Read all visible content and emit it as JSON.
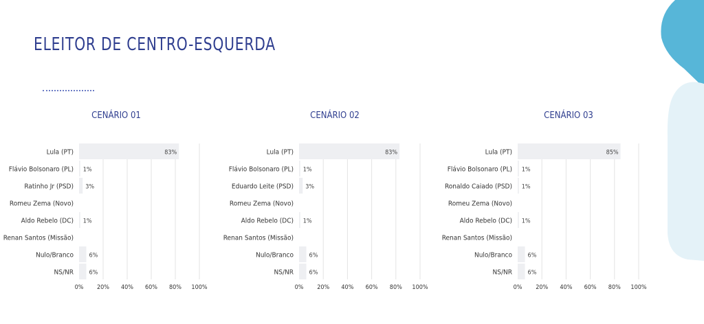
{
  "page": {
    "title": "ELEITOR DE CENTRO-ESQUERDA"
  },
  "colors": {
    "title": "#2f3e8f",
    "bar": "#eeeff2",
    "grid": "#e3e3e3",
    "accent_dark": "#57b6d8",
    "accent_light": "#e4f2f8"
  },
  "chart_data": [
    {
      "type": "bar",
      "orientation": "horizontal",
      "title": "CENÁRIO 01",
      "categories": [
        "Lula (PT)",
        "Flávio Bolsonaro (PL)",
        "Ratinho Jr (PSD)",
        "Romeu Zema (Novo)",
        "Aldo Rebelo (DC)",
        "Renan Santos (Missão)",
        "Nulo/Branco",
        "NS/NR"
      ],
      "values": [
        83,
        1,
        3,
        null,
        1,
        null,
        6,
        6
      ],
      "value_labels": [
        "83%",
        "1%",
        "3%",
        "",
        "1%",
        "",
        "6%",
        "6%"
      ],
      "xlim": [
        0,
        100
      ],
      "xticks": [
        "0%",
        "20%",
        "40%",
        "60%",
        "80%",
        "100%"
      ],
      "grid": true
    },
    {
      "type": "bar",
      "orientation": "horizontal",
      "title": "CENÁRIO 02",
      "categories": [
        "Lula (PT)",
        "Flávio Bolsonaro (PL)",
        "Eduardo Leite (PSD)",
        "Romeu Zema (Novo)",
        "Aldo Rebelo (DC)",
        "Renan Santos (Missão)",
        "Nulo/Branco",
        "NS/NR"
      ],
      "values": [
        83,
        1,
        3,
        null,
        1,
        null,
        6,
        6
      ],
      "value_labels": [
        "83%",
        "1%",
        "3%",
        "",
        "1%",
        "",
        "6%",
        "6%"
      ],
      "xlim": [
        0,
        100
      ],
      "xticks": [
        "0%",
        "20%",
        "40%",
        "60%",
        "80%",
        "100%"
      ],
      "grid": true
    },
    {
      "type": "bar",
      "orientation": "horizontal",
      "title": "CENÁRIO 03",
      "categories": [
        "Lula (PT)",
        "Flávio Bolsonaro (PL)",
        "Ronaldo Caiado (PSD)",
        "Romeu Zema (Novo)",
        "Aldo Rebelo (DC)",
        "Renan Santos (Missão)",
        "Nulo/Branco",
        "NS/NR"
      ],
      "values": [
        85,
        1,
        1,
        null,
        1,
        null,
        6,
        6
      ],
      "value_labels": [
        "85%",
        "1%",
        "1%",
        "",
        "1%",
        "",
        "6%",
        "6%"
      ],
      "xlim": [
        0,
        100
      ],
      "xticks": [
        "0%",
        "20%",
        "40%",
        "60%",
        "80%",
        "100%"
      ],
      "grid": true
    }
  ]
}
